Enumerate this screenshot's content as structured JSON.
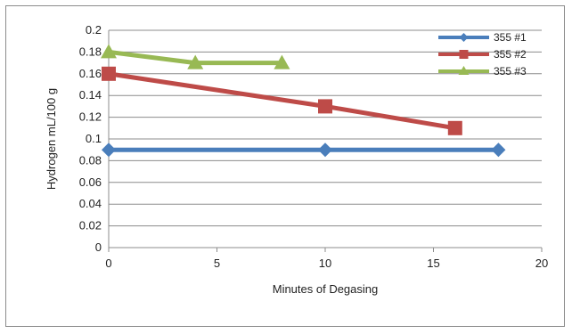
{
  "chart_data": {
    "type": "line",
    "title": "",
    "xlabel": "Minutes of Degasing",
    "ylabel": "Hydrogen mL/100 g",
    "xlim": [
      0,
      20
    ],
    "ylim": [
      0,
      0.2
    ],
    "x_ticks": [
      "0",
      "5",
      "10",
      "15",
      "20"
    ],
    "y_ticks": [
      "0",
      "0.02",
      "0.04",
      "0.06",
      "0.08",
      "0.1",
      "0.12",
      "0.14",
      "0.16",
      "0.18",
      "0.2"
    ],
    "grid": "horizontal",
    "legend_position": "top-right",
    "series": [
      {
        "name": "355 #1",
        "color": "#4a7ebb",
        "marker": "diamond",
        "points": [
          {
            "x": 0,
            "y": 0.09
          },
          {
            "x": 10,
            "y": 0.09
          },
          {
            "x": 18,
            "y": 0.09
          }
        ]
      },
      {
        "name": "355 #2",
        "color": "#be4b48",
        "marker": "square",
        "points": [
          {
            "x": 0,
            "y": 0.16
          },
          {
            "x": 10,
            "y": 0.13
          },
          {
            "x": 16,
            "y": 0.11
          }
        ]
      },
      {
        "name": "355 #3",
        "color": "#98b954",
        "marker": "triangle",
        "points": [
          {
            "x": 0,
            "y": 0.18
          },
          {
            "x": 4,
            "y": 0.17
          },
          {
            "x": 8,
            "y": 0.17
          }
        ]
      }
    ]
  }
}
